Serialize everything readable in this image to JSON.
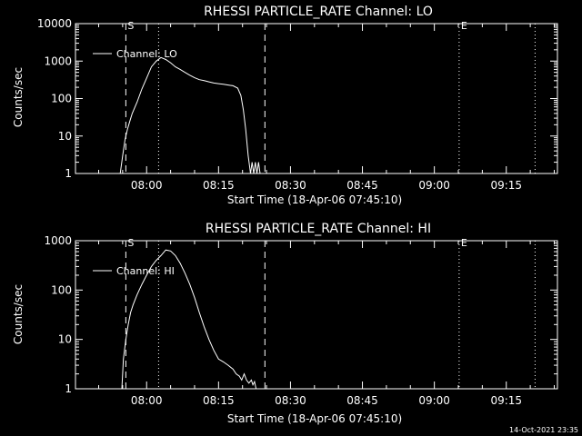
{
  "footer": {
    "timestamp": "14-Oct-2021 23:35"
  },
  "chart_data": [
    {
      "type": "line",
      "title": "RHESSI PARTICLE_RATE Channel: LO",
      "xlabel": "Start Time (18-Apr-06 07:45:10)",
      "ylabel": "Counts/sec",
      "yscale": "log",
      "ylim": [
        1,
        10000
      ],
      "xlim": [
        "07:45:10",
        "09:25:40"
      ],
      "yticks": [
        "1",
        "10",
        "100",
        "1000",
        "10000"
      ],
      "xticks": [
        "08:00",
        "08:15",
        "08:30",
        "08:45",
        "09:00",
        "09:15"
      ],
      "legend": "top-left",
      "markers": [
        {
          "label": "S",
          "time": "07:55:40",
          "style": "dashed"
        },
        {
          "label": "",
          "time": "08:02:30",
          "style": "dotted"
        },
        {
          "label": "",
          "time": "08:24:40",
          "style": "dashed"
        },
        {
          "label": "E",
          "time": "09:05:10",
          "style": "dotted"
        },
        {
          "label": "",
          "time": "09:21:00",
          "style": "dotted"
        }
      ],
      "series": [
        {
          "name": "Channel: LO",
          "x": [
            "07:54:30",
            "07:55:00",
            "07:55:30",
            "07:56:00",
            "07:56:30",
            "07:57:00",
            "07:58:00",
            "07:59:00",
            "08:00:00",
            "08:01:00",
            "08:02:00",
            "08:03:00",
            "08:04:00",
            "08:05:00",
            "08:06:00",
            "08:07:00",
            "08:08:00",
            "08:09:00",
            "08:10:00",
            "08:11:00",
            "08:12:00",
            "08:13:00",
            "08:14:00",
            "08:15:00",
            "08:16:00",
            "08:17:00",
            "08:18:00",
            "08:19:00",
            "08:19:40",
            "08:20:10",
            "08:20:40",
            "08:21:10",
            "08:21:40",
            "08:22:00",
            "08:22:20",
            "08:22:40",
            "08:23:00",
            "08:23:20",
            "08:23:40"
          ],
          "y": [
            1,
            3,
            8,
            15,
            25,
            40,
            80,
            180,
            350,
            700,
            1000,
            1250,
            1100,
            900,
            700,
            600,
            500,
            420,
            360,
            320,
            300,
            280,
            260,
            250,
            240,
            230,
            220,
            190,
            120,
            50,
            15,
            3,
            1,
            2,
            1,
            2,
            1,
            2,
            1
          ]
        }
      ]
    },
    {
      "type": "line",
      "title": "RHESSI PARTICLE_RATE Channel: HI",
      "xlabel": "Start Time (18-Apr-06 07:45:10)",
      "ylabel": "Counts/sec",
      "yscale": "log",
      "ylim": [
        1,
        1000
      ],
      "xlim": [
        "07:45:10",
        "09:25:40"
      ],
      "yticks": [
        "1",
        "10",
        "100",
        "1000"
      ],
      "xticks": [
        "08:00",
        "08:15",
        "08:30",
        "08:45",
        "09:00",
        "09:15"
      ],
      "legend": "top-left",
      "markers": [
        {
          "label": "S",
          "time": "07:55:40",
          "style": "dashed"
        },
        {
          "label": "",
          "time": "08:02:30",
          "style": "dotted"
        },
        {
          "label": "",
          "time": "08:24:40",
          "style": "dashed"
        },
        {
          "label": "E",
          "time": "09:05:10",
          "style": "dotted"
        },
        {
          "label": "",
          "time": "09:21:00",
          "style": "dotted"
        }
      ],
      "series": [
        {
          "name": "Channel: HI",
          "x": [
            "07:54:50",
            "07:55:10",
            "07:55:40",
            "07:56:10",
            "07:56:40",
            "07:57:10",
            "07:58:00",
            "07:59:00",
            "08:00:00",
            "08:01:00",
            "08:02:00",
            "08:03:00",
            "08:04:00",
            "08:05:00",
            "08:06:00",
            "08:07:00",
            "08:08:00",
            "08:09:00",
            "08:10:00",
            "08:11:00",
            "08:12:00",
            "08:13:00",
            "08:14:00",
            "08:15:00",
            "08:16:00",
            "08:17:00",
            "08:18:00",
            "08:18:40",
            "08:19:20",
            "08:19:50",
            "08:20:20",
            "08:20:50",
            "08:21:20",
            "08:21:50",
            "08:22:10",
            "08:22:30",
            "08:22:50"
          ],
          "y": [
            1,
            4,
            10,
            20,
            35,
            50,
            80,
            130,
            200,
            300,
            400,
            500,
            650,
            620,
            500,
            350,
            220,
            130,
            70,
            35,
            18,
            10,
            6,
            4,
            3.5,
            3,
            2.5,
            2,
            1.8,
            1.5,
            2,
            1.5,
            1.3,
            1.5,
            1.2,
            1.4,
            1
          ]
        }
      ]
    }
  ]
}
